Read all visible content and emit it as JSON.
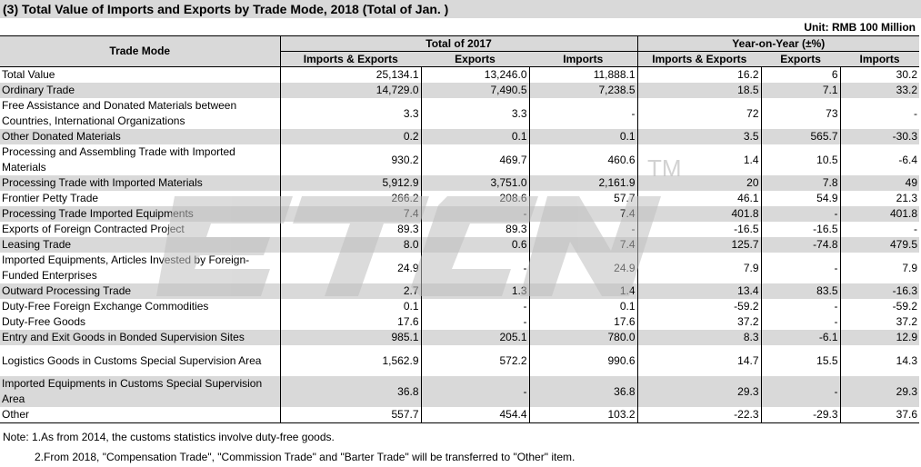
{
  "title": "(3) Total Value of Imports and Exports by Trade Mode,  2018 (Total of Jan. )",
  "unit": "Unit: RMB 100 Million",
  "header": {
    "trade_mode": "Trade Mode",
    "group1": "Total of  2017",
    "group2": "Year-on-Year (±%)",
    "col_ie": "Imports & Exports",
    "col_ex": "Exports",
    "col_im": "Imports",
    "col_ie2": "Imports & Exports",
    "col_ex2": "Exports",
    "col_im2": "Imports"
  },
  "rows": [
    {
      "name": "Total Value",
      "v": [
        "25,134.1",
        "13,246.0",
        "11,888.1",
        "16.2",
        "6",
        "30.2"
      ]
    },
    {
      "name": "Ordinary Trade",
      "v": [
        "14,729.0",
        "7,490.5",
        "7,238.5",
        "18.5",
        "7.1",
        "33.2"
      ]
    },
    {
      "name": "Free Assistance and Donated Materials between Countries, International Organizations",
      "v": [
        "3.3",
        "3.3",
        "-",
        "72",
        "73",
        "-"
      ]
    },
    {
      "name": "Other Donated Materials",
      "v": [
        "0.2",
        "0.1",
        "0.1",
        "3.5",
        "565.7",
        "-30.3"
      ]
    },
    {
      "name": "Processing and Assembling Trade with Imported Materials",
      "v": [
        "930.2",
        "469.7",
        "460.6",
        "1.4",
        "10.5",
        "-6.4"
      ]
    },
    {
      "name": "Processing Trade with Imported Materials",
      "v": [
        "5,912.9",
        "3,751.0",
        "2,161.9",
        "20",
        "7.8",
        "49"
      ]
    },
    {
      "name": "Frontier Petty Trade",
      "v": [
        "266.2",
        "208.6",
        "57.7",
        "46.1",
        "54.9",
        "21.3"
      ]
    },
    {
      "name": "Processing Trade Imported Equipments",
      "v": [
        "7.4",
        "-",
        "7.4",
        "401.8",
        "-",
        "401.8"
      ]
    },
    {
      "name": "Exports of Foreign Contracted Project",
      "v": [
        "89.3",
        "89.3",
        "-",
        "-16.5",
        "-16.5",
        "-"
      ]
    },
    {
      "name": "Leasing Trade",
      "v": [
        "8.0",
        "0.6",
        "7.4",
        "125.7",
        "-74.8",
        "479.5"
      ]
    },
    {
      "name": "Imported Equipments, Articles Invested by Foreign-Funded Enterprises",
      "v": [
        "24.9",
        "-",
        "24.9",
        "7.9",
        "-",
        "7.9"
      ]
    },
    {
      "name": "Outward Processing Trade",
      "v": [
        "2.7",
        "1.3",
        "1.4",
        "13.4",
        "83.5",
        "-16.3"
      ]
    },
    {
      "name": "Duty-Free Foreign Exchange Commodities",
      "v": [
        "0.1",
        "-",
        "0.1",
        "-59.2",
        "-",
        "-59.2"
      ]
    },
    {
      "name": "Duty-Free Goods",
      "v": [
        "17.6",
        "-",
        "17.6",
        "37.2",
        "-",
        "37.2"
      ]
    },
    {
      "name": "Entry and Exit Goods in Bonded Supervision Sites",
      "v": [
        "985.1",
        "205.1",
        "780.0",
        "8.3",
        "-6.1",
        "12.9"
      ]
    },
    {
      "name": "Logistics Goods in Customs Special Supervision Area",
      "v": [
        "1,562.9",
        "572.2",
        "990.6",
        "14.7",
        "15.5",
        "14.3"
      ]
    },
    {
      "name": "Imported Equipments in Customs Special Supervision Area",
      "v": [
        "36.8",
        "-",
        "36.8",
        "29.3",
        "-",
        "29.3"
      ]
    },
    {
      "name": "Other",
      "v": [
        "557.7",
        "454.4",
        "103.2",
        "-22.3",
        "-29.3",
        "37.6"
      ]
    }
  ],
  "notes": [
    "Note: 1.As from 2014, the customs statistics involve duty-free goods.",
    "2.From 2018, \"Compensation Trade\", \"Commission Trade\" and \"Barter Trade\" will be transferred to \"Other\" item."
  ],
  "watermark": {
    "text": "ETCN",
    "mark": "TM",
    "color": "#bfbfbf"
  }
}
